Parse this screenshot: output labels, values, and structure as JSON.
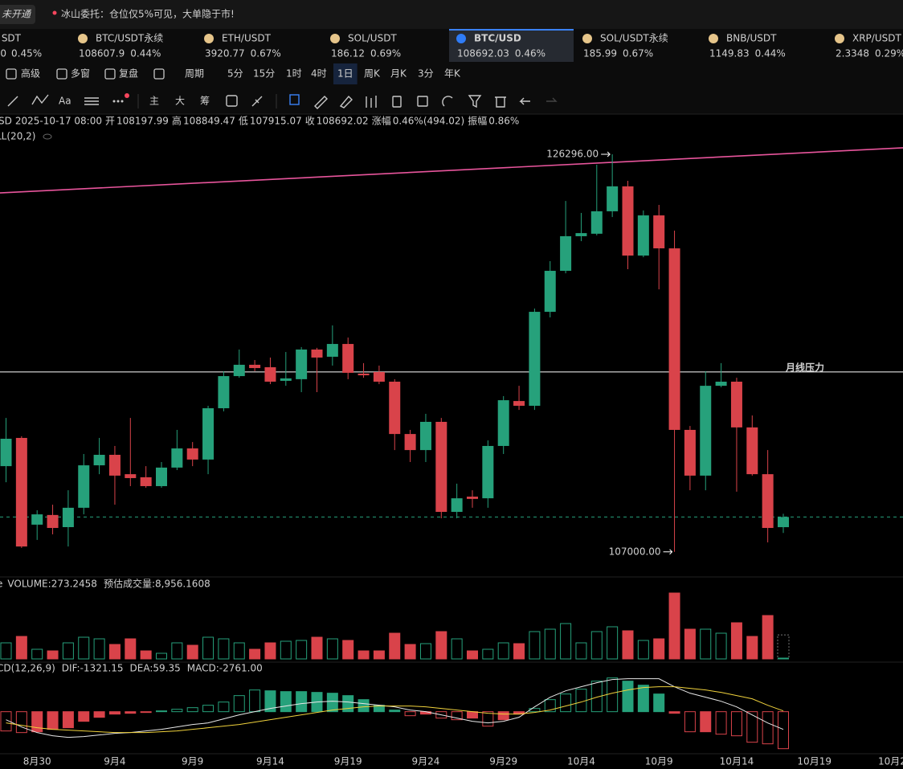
{
  "status": {
    "badge": "未开通",
    "notice": "冰山委托：仓位仅5%可见，大单隐于市!"
  },
  "tickers": [
    {
      "symbol": "SDT",
      "price": "0",
      "change": "0.45%",
      "color": "#2ebd85"
    },
    {
      "symbol": "BTC/USDT永续",
      "price": "108607.9",
      "change": "0.44%",
      "color": "#2ebd85"
    },
    {
      "symbol": "ETH/USDT",
      "price": "3920.77",
      "change": "0.67%",
      "color": "#2ebd85"
    },
    {
      "symbol": "SOL/USDT",
      "price": "186.12",
      "change": "0.69%",
      "color": "#f6465d"
    },
    {
      "symbol": "BTC/USD",
      "price": "108692.03",
      "change": "0.46%",
      "color": "#2ebd85",
      "active": true
    },
    {
      "symbol": "SOL/USDT永续",
      "price": "185.99",
      "change": "0.67%",
      "color": "#f6465d"
    },
    {
      "symbol": "BNB/USDT",
      "price": "1149.83",
      "change": "0.44%",
      "color": "#2ebd85"
    },
    {
      "symbol": "XRP/USDT",
      "price": "2.3348",
      "change": "0.29%",
      "color": "#2ebd85"
    }
  ],
  "toolbar": {
    "items": [
      "高级",
      "多窗",
      "复盘",
      "周期",
      "5分",
      "15分",
      "1时",
      "4时",
      "1日",
      "周K",
      "月K",
      "3分",
      "年K"
    ],
    "active": 8
  },
  "drawing_tools": {
    "items": [
      "Aa",
      "主",
      "大",
      "筹"
    ]
  },
  "info": {
    "symbol": "SD",
    "time": "2025-10-17 08:00",
    "open_label": "开",
    "high_label": "高",
    "low_label": "低",
    "close_label": "收",
    "change_label": "涨幅",
    "change": "0.46%(494.02)",
    "amplitude_label": "振幅",
    "amplitude": "0.86%",
    "indicator": "LL(20,2)"
  },
  "chart_data": {
    "type": "candlestick",
    "candles": {
      "open": [
        111160,
        112530,
        108320,
        108790,
        108200,
        109140,
        111200,
        111710,
        110770,
        110620,
        110190,
        111090,
        112020,
        111480,
        113970,
        115530,
        116080,
        115960,
        115300,
        115380,
        116820,
        116470,
        117090,
        115650,
        115730,
        115260,
        112720,
        111940,
        113310,
        108940,
        109680,
        109600,
        112140,
        114320,
        114090,
        118650,
        120640,
        122320,
        122440,
        123530,
        124740,
        121380,
        123330,
        121730,
        112920,
        110700,
        115060,
        115260,
        113040,
        110770,
        108197.99
      ],
      "high": [
        113500,
        112610,
        109020,
        109290,
        109990,
        111750,
        112530,
        112140,
        113500,
        111160,
        111360,
        112920,
        112330,
        114090,
        115770,
        116820,
        116310,
        116430,
        116700,
        116940,
        116900,
        117990,
        117400,
        116160,
        116040,
        115380,
        112920,
        113700,
        113500,
        110310,
        109990,
        112410,
        114560,
        115060,
        118810,
        121110,
        124030,
        123450,
        125790,
        126296,
        125010,
        123570,
        123840,
        122590,
        113110,
        115770,
        116160,
        115450,
        113620,
        111940,
        108849.47
      ],
      "low": [
        110380,
        107190,
        107580,
        107850,
        107260,
        108820,
        110770,
        109290,
        110190,
        110110,
        110110,
        110970,
        111160,
        110770,
        113820,
        115450,
        115770,
        115140,
        115060,
        114750,
        114750,
        116040,
        115380,
        115450,
        115140,
        111940,
        111360,
        111360,
        108630,
        108630,
        109140,
        109140,
        111750,
        113890,
        113890,
        118380,
        120520,
        122080,
        122360,
        123250,
        120720,
        121300,
        119740,
        107000,
        109990,
        109990,
        114990,
        109920,
        110700,
        107460,
        107915.07
      ],
      "close": [
        112490,
        107260,
        108820,
        108160,
        109140,
        111200,
        111710,
        110700,
        110580,
        110190,
        111090,
        112020,
        111480,
        113970,
        115530,
        116080,
        115920,
        115260,
        115420,
        116820,
        116430,
        117090,
        115690,
        115570,
        115260,
        112720,
        111940,
        113310,
        108940,
        109600,
        109570,
        112140,
        114360,
        114090,
        118650,
        120640,
        122320,
        122470,
        123530,
        124740,
        121380,
        123330,
        121730,
        112920,
        110700,
        115060,
        115260,
        113040,
        110770,
        108160,
        108692.02
      ]
    },
    "up_color": "#26a17b",
    "down_color": "#d9434a",
    "ylim": [
      105899,
      127544
    ],
    "annotations": [
      {
        "text": "126296.00",
        "price": 126296,
        "kind": "high"
      },
      {
        "text": "107000.00",
        "price": 107000,
        "kind": "low"
      }
    ],
    "trendline": {
      "color": "#e8559c",
      "start": 124420,
      "end": 126610
    },
    "level": {
      "label": "月线压力",
      "price": 115730,
      "color": "#ffffff",
      "label_color": "#f5d031"
    },
    "x_labels": [
      "8月30",
      "9月4",
      "9月9",
      "9月14",
      "9月19",
      "9月24",
      "9月29",
      "10月4",
      "10月9",
      "10月14",
      "10月19",
      "10月2"
    ],
    "volume": {
      "prefix": "e",
      "label": "VOLUME:",
      "values": [
        6000,
        8400,
        3600,
        3000,
        6000,
        8100,
        7500,
        5400,
        7500,
        3000,
        2100,
        6000,
        5100,
        8100,
        7500,
        6000,
        3600,
        6000,
        6600,
        6900,
        8100,
        7500,
        6900,
        3000,
        3000,
        9600,
        5400,
        5700,
        10200,
        7500,
        3000,
        3600,
        6000,
        5700,
        10200,
        11100,
        13200,
        6000,
        10200,
        12000,
        10500,
        6900,
        7500,
        24600,
        11100,
        11100,
        9600,
        13500,
        8400,
        16200,
        273.2458
      ],
      "ylim": [
        0,
        27000
      ],
      "estimate_label": "预估成交量:",
      "estimate": {
        "value": 8956.1608,
        "label": "8,956.1608"
      }
    },
    "macd": {
      "name": "CD(12,26,9)",
      "dif_label": "DIF:",
      "dea_label": "DEA:",
      "macd_label": "MACD:",
      "macd_value": {
        "value": -2761,
        "label": "-2761.00"
      },
      "dif": [
        -600,
        -1140,
        -1560,
        -1800,
        -1920,
        -1860,
        -1740,
        -1620,
        -1560,
        -1440,
        -1320,
        -1140,
        -960,
        -840,
        -540,
        -240,
        0,
        240,
        420,
        600,
        720,
        780,
        720,
        600,
        480,
        360,
        120,
        0,
        -240,
        -480,
        -720,
        -840,
        -720,
        -420,
        360,
        1080,
        1560,
        1860,
        2160,
        2400,
        2460,
        2460,
        2460,
        1860,
        1380,
        1080,
        780,
        360,
        -240,
        -840,
        -1321.15
      ],
      "dea": [
        -840,
        -1020,
        -1200,
        -1320,
        -1380,
        -1440,
        -1500,
        -1560,
        -1560,
        -1560,
        -1500,
        -1440,
        -1320,
        -1200,
        -1080,
        -960,
        -780,
        -600,
        -420,
        -240,
        -60,
        120,
        240,
        360,
        420,
        420,
        420,
        360,
        240,
        120,
        0,
        -120,
        -180,
        -180,
        -60,
        120,
        420,
        720,
        1080,
        1380,
        1620,
        1800,
        1860,
        1860,
        1740,
        1620,
        1440,
        1200,
        960,
        480,
        59.35
      ],
      "hist": [
        -1440,
        -1560,
        -1500,
        -1320,
        -1200,
        -720,
        -420,
        -180,
        -120,
        -60,
        60,
        180,
        300,
        480,
        720,
        1200,
        1620,
        1560,
        1500,
        1500,
        1440,
        1380,
        1200,
        900,
        480,
        120,
        -300,
        -180,
        -480,
        -600,
        -480,
        -1080,
        -600,
        -180,
        240,
        900,
        1320,
        1680,
        2280,
        2520,
        2280,
        1980,
        1320,
        -120,
        -1500,
        -1500,
        -1680,
        -1800,
        -2280,
        -2400,
        -2761
      ],
      "ylim": [
        -3200,
        3400
      ],
      "dif_color": "#e8e8e8",
      "dea_color": "#f0d23c"
    }
  }
}
